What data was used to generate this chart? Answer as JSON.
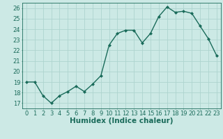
{
  "x": [
    0,
    1,
    2,
    3,
    4,
    5,
    6,
    7,
    8,
    9,
    10,
    11,
    12,
    13,
    14,
    15,
    16,
    17,
    18,
    19,
    20,
    21,
    22,
    23
  ],
  "y": [
    19.0,
    19.0,
    17.7,
    17.0,
    17.7,
    18.1,
    18.6,
    18.1,
    18.8,
    19.6,
    22.5,
    23.6,
    23.9,
    23.9,
    22.7,
    23.6,
    25.2,
    26.1,
    25.6,
    25.7,
    25.5,
    24.3,
    23.1,
    21.5
  ],
  "line_color": "#1a6b5a",
  "marker": "D",
  "marker_size": 2.0,
  "bg_color": "#cce9e5",
  "grid_color": "#aed4cf",
  "xlabel": "Humidex (Indice chaleur)",
  "xlim": [
    -0.5,
    23.5
  ],
  "ylim": [
    16.5,
    26.5
  ],
  "yticks": [
    17,
    18,
    19,
    20,
    21,
    22,
    23,
    24,
    25,
    26
  ],
  "xticks": [
    0,
    1,
    2,
    3,
    4,
    5,
    6,
    7,
    8,
    9,
    10,
    11,
    12,
    13,
    14,
    15,
    16,
    17,
    18,
    19,
    20,
    21,
    22,
    23
  ],
  "xlabel_fontsize": 7.5,
  "tick_fontsize": 6.0,
  "line_width": 1.0
}
